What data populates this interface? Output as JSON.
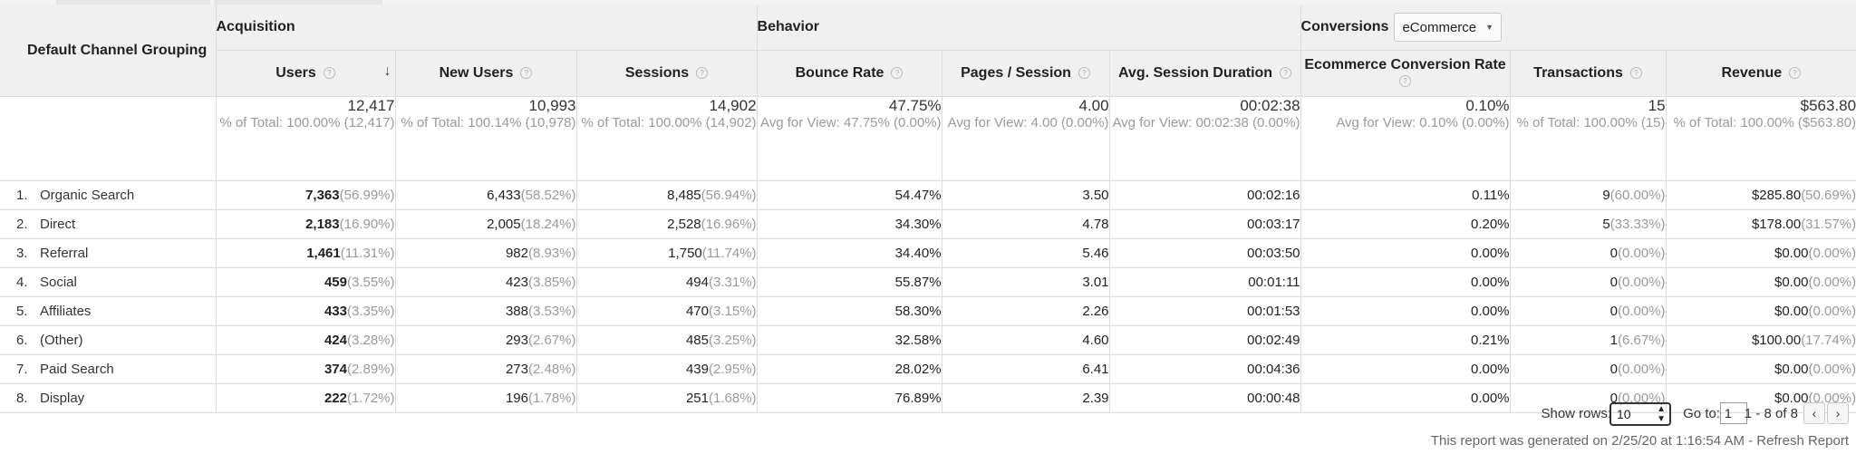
{
  "header": {
    "dimension_label": "Default Channel Grouping",
    "groups": {
      "acquisition": "Acquisition",
      "behavior": "Behavior",
      "conversions": "Conversions"
    },
    "conversion_select": "eCommerce",
    "columns": [
      "Users",
      "New Users",
      "Sessions",
      "Bounce Rate",
      "Pages / Session",
      "Avg. Session Duration",
      "Ecommerce Conversion Rate",
      "Transactions",
      "Revenue"
    ],
    "sort_icon": "arrow-down-icon",
    "help_icon": "question-mark-icon"
  },
  "totals": [
    {
      "value": "12,417",
      "sub": "% of Total: 100.00% (12,417)"
    },
    {
      "value": "10,993",
      "sub": "% of Total: 100.14% (10,978)"
    },
    {
      "value": "14,902",
      "sub": "% of Total: 100.00% (14,902)"
    },
    {
      "value": "47.75%",
      "sub": "Avg for View: 47.75% (0.00%)"
    },
    {
      "value": "4.00",
      "sub": "Avg for View: 4.00 (0.00%)"
    },
    {
      "value": "00:02:38",
      "sub": "Avg for View: 00:02:38 (0.00%)"
    },
    {
      "value": "0.10%",
      "sub": "Avg for View: 0.10% (0.00%)"
    },
    {
      "value": "15",
      "sub": "% of Total: 100.00% (15)"
    },
    {
      "value": "$563.80",
      "sub": "% of Total: 100.00% ($563.80)"
    }
  ],
  "rows": [
    {
      "index": "1.",
      "channel": "Organic Search",
      "users": "7,363",
      "users_pct": "(56.99%)",
      "new_users": "6,433",
      "new_users_pct": "(58.52%)",
      "sessions": "8,485",
      "sessions_pct": "(56.94%)",
      "bounce": "54.47%",
      "pages": "3.50",
      "duration": "00:02:16",
      "conv_rate": "0.11%",
      "transactions": "9",
      "transactions_pct": "(60.00%)",
      "revenue": "$285.80",
      "revenue_pct": "(50.69%)"
    },
    {
      "index": "2.",
      "channel": "Direct",
      "users": "2,183",
      "users_pct": "(16.90%)",
      "new_users": "2,005",
      "new_users_pct": "(18.24%)",
      "sessions": "2,528",
      "sessions_pct": "(16.96%)",
      "bounce": "34.30%",
      "pages": "4.78",
      "duration": "00:03:17",
      "conv_rate": "0.20%",
      "transactions": "5",
      "transactions_pct": "(33.33%)",
      "revenue": "$178.00",
      "revenue_pct": "(31.57%)"
    },
    {
      "index": "3.",
      "channel": "Referral",
      "users": "1,461",
      "users_pct": "(11.31%)",
      "new_users": "982",
      "new_users_pct": "(8.93%)",
      "sessions": "1,750",
      "sessions_pct": "(11.74%)",
      "bounce": "34.40%",
      "pages": "5.46",
      "duration": "00:03:50",
      "conv_rate": "0.00%",
      "transactions": "0",
      "transactions_pct": "(0.00%)",
      "revenue": "$0.00",
      "revenue_pct": "(0.00%)"
    },
    {
      "index": "4.",
      "channel": "Social",
      "users": "459",
      "users_pct": "(3.55%)",
      "new_users": "423",
      "new_users_pct": "(3.85%)",
      "sessions": "494",
      "sessions_pct": "(3.31%)",
      "bounce": "55.87%",
      "pages": "3.01",
      "duration": "00:01:11",
      "conv_rate": "0.00%",
      "transactions": "0",
      "transactions_pct": "(0.00%)",
      "revenue": "$0.00",
      "revenue_pct": "(0.00%)"
    },
    {
      "index": "5.",
      "channel": "Affiliates",
      "users": "433",
      "users_pct": "(3.35%)",
      "new_users": "388",
      "new_users_pct": "(3.53%)",
      "sessions": "470",
      "sessions_pct": "(3.15%)",
      "bounce": "58.30%",
      "pages": "2.26",
      "duration": "00:01:53",
      "conv_rate": "0.00%",
      "transactions": "0",
      "transactions_pct": "(0.00%)",
      "revenue": "$0.00",
      "revenue_pct": "(0.00%)"
    },
    {
      "index": "6.",
      "channel": "(Other)",
      "users": "424",
      "users_pct": "(3.28%)",
      "new_users": "293",
      "new_users_pct": "(2.67%)",
      "sessions": "485",
      "sessions_pct": "(3.25%)",
      "bounce": "32.58%",
      "pages": "4.60",
      "duration": "00:02:49",
      "conv_rate": "0.21%",
      "transactions": "1",
      "transactions_pct": "(6.67%)",
      "revenue": "$100.00",
      "revenue_pct": "(17.74%)"
    },
    {
      "index": "7.",
      "channel": "Paid Search",
      "users": "374",
      "users_pct": "(2.89%)",
      "new_users": "273",
      "new_users_pct": "(2.48%)",
      "sessions": "439",
      "sessions_pct": "(2.95%)",
      "bounce": "28.02%",
      "pages": "6.41",
      "duration": "00:04:36",
      "conv_rate": "0.00%",
      "transactions": "0",
      "transactions_pct": "(0.00%)",
      "revenue": "$0.00",
      "revenue_pct": "(0.00%)"
    },
    {
      "index": "8.",
      "channel": "Display",
      "users": "222",
      "users_pct": "(1.72%)",
      "new_users": "196",
      "new_users_pct": "(1.78%)",
      "sessions": "251",
      "sessions_pct": "(1.68%)",
      "bounce": "76.89%",
      "pages": "2.39",
      "duration": "00:00:48",
      "conv_rate": "0.00%",
      "transactions": "0",
      "transactions_pct": "(0.00%)",
      "revenue": "$0.00",
      "revenue_pct": "(0.00%)"
    }
  ],
  "footer": {
    "show_rows_label": "Show rows:",
    "show_rows_value": "10",
    "goto_label": "Go to:",
    "goto_value": "1",
    "range": "1 - 8 of 8",
    "prev_icon": "chevron-left-icon",
    "next_icon": "chevron-right-icon",
    "generated": "This report was generated on 2/25/20 at 1:16:54 AM - ",
    "refresh": "Refresh Report"
  }
}
